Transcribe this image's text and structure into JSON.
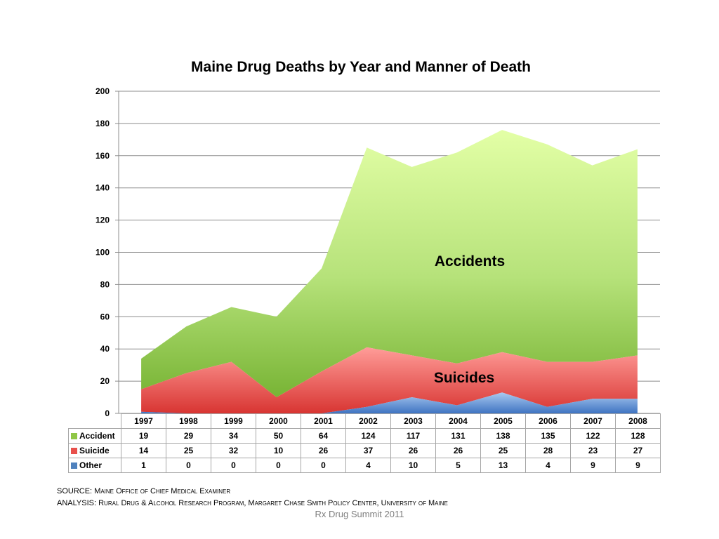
{
  "chart_data": {
    "type": "area",
    "stacked": true,
    "title": "Maine Drug Deaths by Year and Manner of Death",
    "categories": [
      "1997",
      "1998",
      "1999",
      "2000",
      "2001",
      "2002",
      "2003",
      "2004",
      "2005",
      "2006",
      "2007",
      "2008"
    ],
    "ylim": [
      0,
      200
    ],
    "yticks": [
      0,
      20,
      40,
      60,
      80,
      100,
      120,
      140,
      160,
      180,
      200
    ],
    "grid": true,
    "legend": "data-table",
    "series": [
      {
        "name": "Accident",
        "values": [
          19,
          29,
          34,
          50,
          64,
          124,
          117,
          131,
          138,
          135,
          122,
          128
        ],
        "color": "#8fc646"
      },
      {
        "name": "Suicide",
        "values": [
          14,
          25,
          32,
          10,
          26,
          37,
          26,
          26,
          25,
          28,
          23,
          27
        ],
        "color": "#e8504c"
      },
      {
        "name": "Other",
        "values": [
          1,
          0,
          0,
          0,
          0,
          4,
          10,
          5,
          13,
          4,
          9,
          9
        ],
        "color": "#4f81bd"
      }
    ],
    "annotations": [
      "Accidents",
      "Suicides"
    ]
  },
  "footer": {
    "source_prefix": "SOURCE: ",
    "source_text": "Maine Office of Chief Medical Examiner",
    "analysis_prefix": "ANALYSIS: ",
    "analysis_text": "Rural Drug & Alcohol Research Program, Margaret Chase Smith Policy Center, University of Maine",
    "event": "Rx Drug Summit 2011"
  }
}
